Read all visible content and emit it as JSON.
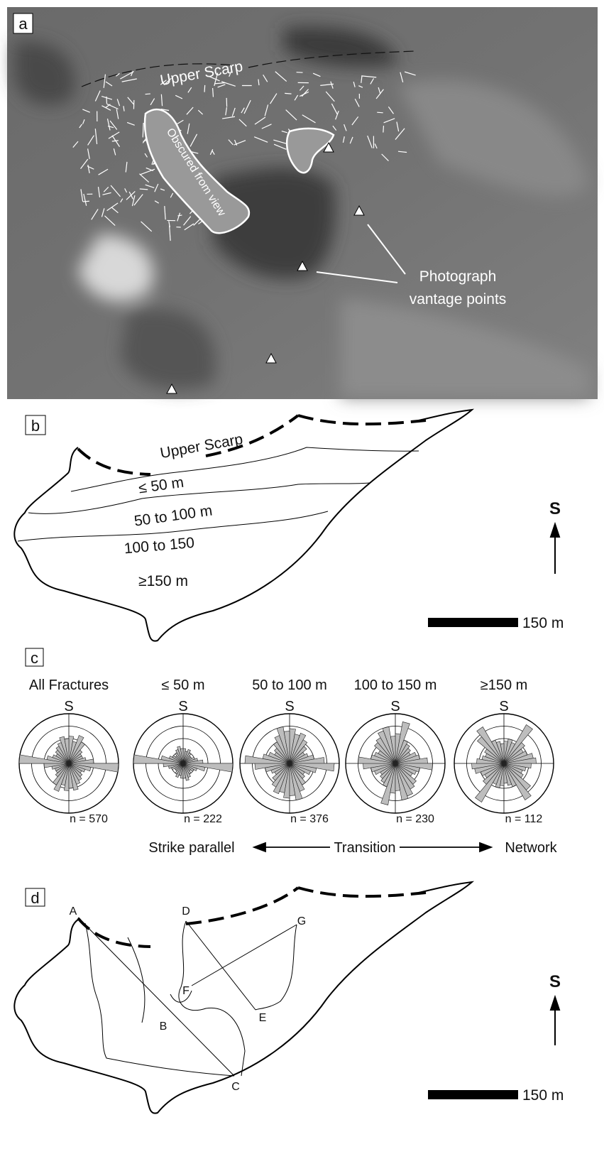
{
  "panel_a": {
    "label": "a",
    "upper_scarp": "Upper Scarp",
    "obscured": "Obscured from view",
    "vantage": [
      "Photograph",
      "vantage points"
    ]
  },
  "panel_b": {
    "label": "b",
    "upper_scarp": "Upper Scarp",
    "zones": [
      "≤ 50 m",
      "50 to 100 m",
      "100 to 150",
      "≥150 m"
    ],
    "north": "S",
    "scale": "150 m"
  },
  "panel_c": {
    "label": "c",
    "roses": [
      {
        "title": "All Fractures",
        "north": "S",
        "n": "n = 570",
        "petals": [
          0.55,
          0.45,
          0.6,
          0.5,
          0.35,
          0.3,
          0.3,
          0.35,
          0.5,
          1.0,
          0.45,
          0.35,
          0.3,
          0.35,
          0.4,
          0.45,
          0.55,
          0.5
        ]
      },
      {
        "title": "≤ 50 m",
        "north": "S",
        "n": "n = 222",
        "petals": [
          0.3,
          0.25,
          0.3,
          0.25,
          0.2,
          0.2,
          0.25,
          0.3,
          0.4,
          1.0,
          0.45,
          0.3,
          0.25,
          0.2,
          0.25,
          0.3,
          0.35,
          0.3
        ]
      },
      {
        "title": "50 to 100 m",
        "north": "S",
        "n": "n = 376",
        "petals": [
          0.7,
          0.6,
          0.65,
          0.55,
          0.45,
          0.35,
          0.4,
          0.5,
          0.7,
          0.9,
          0.55,
          0.45,
          0.35,
          0.4,
          0.5,
          0.6,
          0.75,
          0.65
        ]
      },
      {
        "title": "100 to 150 m",
        "north": "S",
        "n": "n = 230",
        "petals": [
          0.6,
          0.85,
          0.5,
          0.45,
          0.4,
          0.35,
          0.45,
          0.5,
          0.65,
          0.75,
          0.5,
          0.45,
          0.4,
          0.55,
          0.6,
          0.7,
          0.75,
          0.55
        ]
      },
      {
        "title": "≥150 m",
        "north": "S",
        "n": "n = 112",
        "petals": [
          0.45,
          0.5,
          0.45,
          0.9,
          0.55,
          0.45,
          0.5,
          0.6,
          0.65,
          0.55,
          0.45,
          0.4,
          0.45,
          0.7,
          0.85,
          0.5,
          0.45,
          0.4
        ]
      }
    ],
    "spectrum": [
      "Strike parallel",
      "Transition",
      "Network"
    ]
  },
  "panel_d": {
    "label": "d",
    "points": [
      "A",
      "B",
      "C",
      "D",
      "E",
      "F",
      "G"
    ],
    "north": "S",
    "scale": "150 m"
  }
}
